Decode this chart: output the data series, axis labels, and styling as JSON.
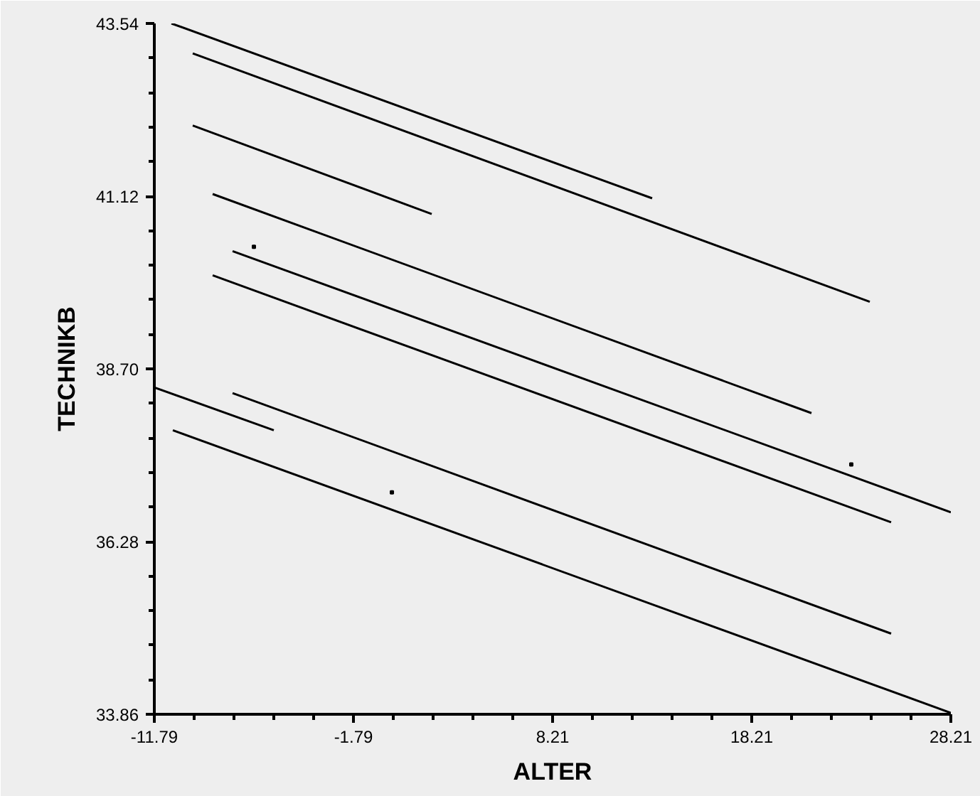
{
  "chart_data": {
    "type": "line",
    "xlabel": "ALTER",
    "ylabel": "TECHNIKB",
    "xlim": [
      -11.79,
      28.21
    ],
    "ylim": [
      33.86,
      43.54
    ],
    "xticks": [
      -11.79,
      {
        "value": -9.79,
        "label": null
      },
      {
        "value": -7.79,
        "label": null
      },
      {
        "value": -5.79,
        "label": null
      },
      {
        "value": -3.79,
        "label": null
      },
      -1.79,
      {
        "value": 0.21,
        "label": null
      },
      {
        "value": 2.21,
        "label": null
      },
      {
        "value": 4.21,
        "label": null
      },
      {
        "value": 6.21,
        "label": null
      },
      8.21,
      {
        "value": 10.21,
        "label": null
      },
      {
        "value": 12.21,
        "label": null
      },
      {
        "value": 14.21,
        "label": null
      },
      {
        "value": 16.21,
        "label": null
      },
      18.21,
      {
        "value": 20.21,
        "label": null
      },
      {
        "value": 22.21,
        "label": null
      },
      {
        "value": 24.21,
        "label": null
      },
      {
        "value": 26.21,
        "label": null
      },
      28.21
    ],
    "yticks": [
      33.86,
      {
        "value": 34.344,
        "label": null
      },
      {
        "value": 34.828,
        "label": null
      },
      {
        "value": 35.312,
        "label": null
      },
      {
        "value": 35.796,
        "label": null
      },
      {
        "value": 36.28,
        "label": "36.28"
      },
      {
        "value": 36.764,
        "label": null
      },
      {
        "value": 37.248,
        "label": null
      },
      {
        "value": 37.732,
        "label": null
      },
      {
        "value": 38.216,
        "label": null
      },
      {
        "value": 38.7,
        "label": "38.70"
      },
      {
        "value": 39.184,
        "label": null
      },
      {
        "value": 39.668,
        "label": null
      },
      {
        "value": 40.152,
        "label": null
      },
      {
        "value": 40.636,
        "label": null
      },
      41.12,
      {
        "value": 41.604,
        "label": null
      },
      {
        "value": 42.088,
        "label": null
      },
      {
        "value": 42.572,
        "label": null
      },
      {
        "value": 43.056,
        "label": null
      },
      43.54
    ],
    "grid": false,
    "series": [
      {
        "color": "#000000",
        "x": [
          -10.93,
          13.21
        ],
        "values": [
          43.54,
          41.09
        ]
      },
      {
        "color": "#000000",
        "x": [
          -9.86,
          24.14
        ],
        "values": [
          43.12,
          39.64
        ]
      },
      {
        "color": "#000000",
        "x": [
          -9.86,
          2.14
        ],
        "values": [
          42.11,
          40.87
        ]
      },
      {
        "color": "#000000",
        "x": [
          -8.86,
          21.21
        ],
        "values": [
          41.15,
          38.08
        ]
      },
      {
        "color": "#000000",
        "x": [
          -7.86,
          28.21
        ],
        "values": [
          40.35,
          36.69
        ]
      },
      {
        "color": "#000000",
        "x": [
          -8.86,
          25.21
        ],
        "values": [
          40.01,
          36.55
        ]
      },
      {
        "color": "#000000",
        "x": [
          -11.79,
          -5.79
        ],
        "values": [
          38.44,
          37.84
        ]
      },
      {
        "color": "#000000",
        "x": [
          -7.86,
          25.21
        ],
        "values": [
          38.36,
          34.99
        ]
      },
      {
        "color": "#000000",
        "x": [
          -10.86,
          28.21
        ],
        "values": [
          37.84,
          33.88
        ]
      },
      {
        "type": "scatter",
        "marker": "square",
        "color": "#000000",
        "x": [
          -6.79,
          23.21,
          0.14
        ],
        "values": [
          40.41,
          37.36,
          36.97
        ]
      }
    ]
  }
}
